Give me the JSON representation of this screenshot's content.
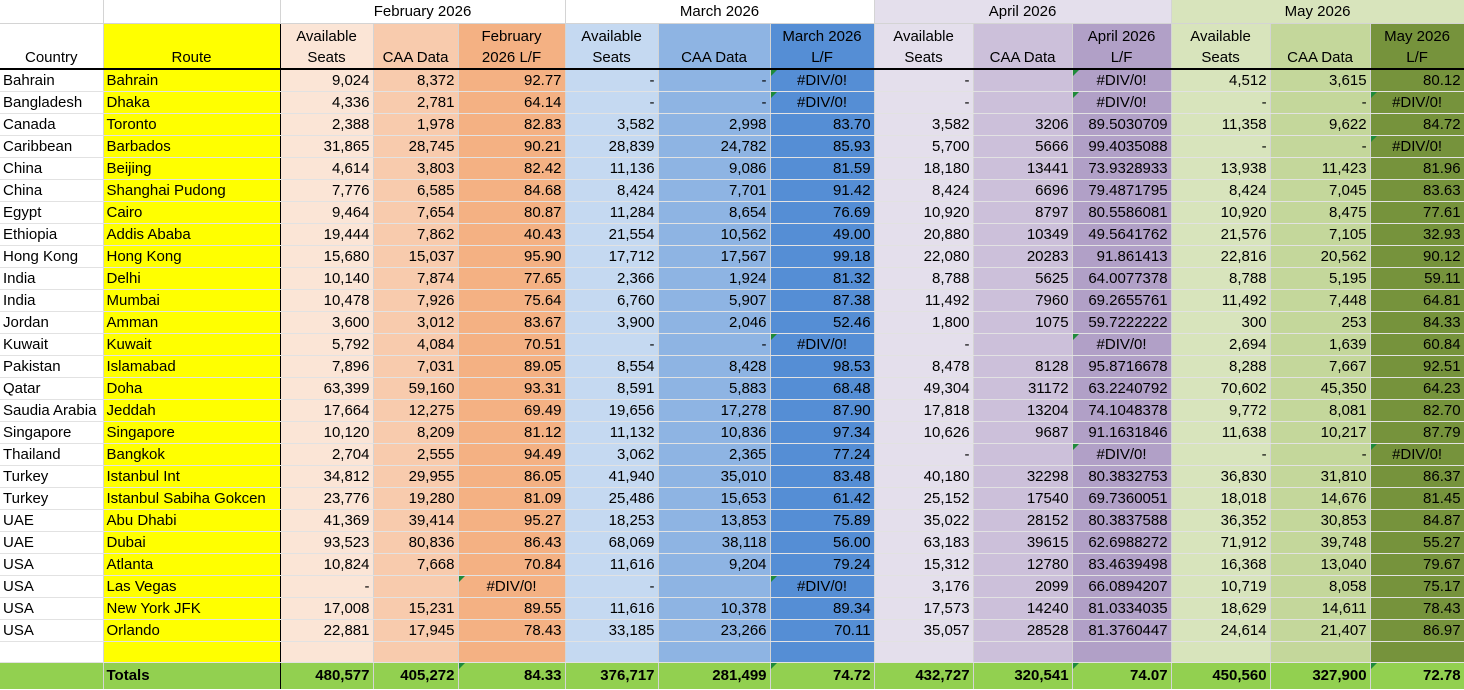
{
  "months": [
    "February 2026",
    "March 2026",
    "April 2026",
    "May 2026"
  ],
  "headers": {
    "country": "Country",
    "route": "Route",
    "feb": [
      "Available\nSeats",
      "CAA Data",
      "February\n2026 L/F"
    ],
    "mar": [
      "Available\nSeats",
      "CAA Data",
      "March 2026\nL/F"
    ],
    "apr": [
      "Available\nSeats",
      "CAA Data",
      "April  2026\nL/F"
    ],
    "may": [
      "Available\nSeats",
      "CAA Data",
      "May 2026\nL/F"
    ]
  },
  "rows": [
    [
      "Bahrain",
      "Bahrain",
      "9,024",
      "8,372",
      "92.77",
      "-",
      "-",
      "#DIV/0!",
      "-",
      "",
      "#DIV/0!",
      "4,512",
      "3,615",
      "80.12"
    ],
    [
      "Bangladesh",
      "Dhaka",
      "4,336",
      "2,781",
      "64.14",
      "-",
      "-",
      "#DIV/0!",
      "-",
      "",
      "#DIV/0!",
      "-",
      "-",
      "#DIV/0!"
    ],
    [
      "Canada",
      "Toronto",
      "2,388",
      "1,978",
      "82.83",
      "3,582",
      "2,998",
      "83.70",
      "3,582",
      "3206",
      "89.5030709",
      "11,358",
      "9,622",
      "84.72"
    ],
    [
      "Caribbean",
      "Barbados",
      "31,865",
      "28,745",
      "90.21",
      "28,839",
      "24,782",
      "85.93",
      "5,700",
      "5666",
      "99.4035088",
      "-",
      "-",
      "#DIV/0!"
    ],
    [
      "China",
      "Beijing",
      "4,614",
      "3,803",
      "82.42",
      "11,136",
      "9,086",
      "81.59",
      "18,180",
      "13441",
      "73.9328933",
      "13,938",
      "11,423",
      "81.96"
    ],
    [
      "China",
      "Shanghai Pudong",
      "7,776",
      "6,585",
      "84.68",
      "8,424",
      "7,701",
      "91.42",
      "8,424",
      "6696",
      "79.4871795",
      "8,424",
      "7,045",
      "83.63"
    ],
    [
      "Egypt",
      "Cairo",
      "9,464",
      "7,654",
      "80.87",
      "11,284",
      "8,654",
      "76.69",
      "10,920",
      "8797",
      "80.5586081",
      "10,920",
      "8,475",
      "77.61"
    ],
    [
      "Ethiopia",
      "Addis Ababa",
      "19,444",
      "7,862",
      "40.43",
      "21,554",
      "10,562",
      "49.00",
      "20,880",
      "10349",
      "49.5641762",
      "21,576",
      "7,105",
      "32.93"
    ],
    [
      "Hong Kong",
      "Hong Kong",
      "15,680",
      "15,037",
      "95.90",
      "17,712",
      "17,567",
      "99.18",
      "22,080",
      "20283",
      "91.861413",
      "22,816",
      "20,562",
      "90.12"
    ],
    [
      "India",
      "Delhi",
      "10,140",
      "7,874",
      "77.65",
      "2,366",
      "1,924",
      "81.32",
      "8,788",
      "5625",
      "64.0077378",
      "8,788",
      "5,195",
      "59.11"
    ],
    [
      "India",
      "Mumbai",
      "10,478",
      "7,926",
      "75.64",
      "6,760",
      "5,907",
      "87.38",
      "11,492",
      "7960",
      "69.2655761",
      "11,492",
      "7,448",
      "64.81"
    ],
    [
      "Jordan",
      "Amman",
      "3,600",
      "3,012",
      "83.67",
      "3,900",
      "2,046",
      "52.46",
      "1,800",
      "1075",
      "59.7222222",
      "300",
      "253",
      "84.33"
    ],
    [
      "Kuwait",
      "Kuwait",
      "5,792",
      "4,084",
      "70.51",
      "-",
      "-",
      "#DIV/0!",
      "-",
      "",
      "#DIV/0!",
      "2,694",
      "1,639",
      "60.84"
    ],
    [
      "Pakistan",
      "Islamabad",
      "7,896",
      "7,031",
      "89.05",
      "8,554",
      "8,428",
      "98.53",
      "8,478",
      "8128",
      "95.8716678",
      "8,288",
      "7,667",
      "92.51"
    ],
    [
      "Qatar",
      "Doha",
      "63,399",
      "59,160",
      "93.31",
      "8,591",
      "5,883",
      "68.48",
      "49,304",
      "31172",
      "63.2240792",
      "70,602",
      "45,350",
      "64.23"
    ],
    [
      "Saudia Arabia",
      "Jeddah",
      "17,664",
      "12,275",
      "69.49",
      "19,656",
      "17,278",
      "87.90",
      "17,818",
      "13204",
      "74.1048378",
      "9,772",
      "8,081",
      "82.70"
    ],
    [
      "Singapore",
      "Singapore",
      "10,120",
      "8,209",
      "81.12",
      "11,132",
      "10,836",
      "97.34",
      "10,626",
      "9687",
      "91.1631846",
      "11,638",
      "10,217",
      "87.79"
    ],
    [
      "Thailand",
      "Bangkok",
      "2,704",
      "2,555",
      "94.49",
      "3,062",
      "2,365",
      "77.24",
      "-",
      "",
      "#DIV/0!",
      "-",
      "-",
      "#DIV/0!"
    ],
    [
      "Turkey",
      "Istanbul Int",
      "34,812",
      "29,955",
      "86.05",
      "41,940",
      "35,010",
      "83.48",
      "40,180",
      "32298",
      "80.3832753",
      "36,830",
      "31,810",
      "86.37"
    ],
    [
      "Turkey",
      "Istanbul Sabiha Gokcen",
      "23,776",
      "19,280",
      "81.09",
      "25,486",
      "15,653",
      "61.42",
      "25,152",
      "17540",
      "69.7360051",
      "18,018",
      "14,676",
      "81.45"
    ],
    [
      "UAE",
      "Abu Dhabi",
      "41,369",
      "39,414",
      "95.27",
      "18,253",
      "13,853",
      "75.89",
      "35,022",
      "28152",
      "80.3837588",
      "36,352",
      "30,853",
      "84.87"
    ],
    [
      "UAE",
      "Dubai",
      "93,523",
      "80,836",
      "86.43",
      "68,069",
      "38,118",
      "56.00",
      "63,183",
      "39615",
      "62.6988272",
      "71,912",
      "39,748",
      "55.27"
    ],
    [
      "USA",
      "Atlanta",
      "10,824",
      "7,668",
      "70.84",
      "11,616",
      "9,204",
      "79.24",
      "15,312",
      "12780",
      "83.4639498",
      "16,368",
      "13,040",
      "79.67"
    ],
    [
      "USA",
      "Las Vegas",
      "-",
      "",
      "#DIV/0!",
      "-",
      "",
      "#DIV/0!",
      "3,176",
      "2099",
      "66.0894207",
      "10,719",
      "8,058",
      "75.17"
    ],
    [
      "USA",
      "New York JFK",
      "17,008",
      "15,231",
      "89.55",
      "11,616",
      "10,378",
      "89.34",
      "17,573",
      "14240",
      "81.0334035",
      "18,629",
      "14,611",
      "78.43"
    ],
    [
      "USA",
      "Orlando",
      "22,881",
      "17,945",
      "78.43",
      "33,185",
      "23,266",
      "70.11",
      "35,057",
      "28528",
      "81.3760447",
      "24,614",
      "21,407",
      "86.97"
    ]
  ],
  "totals": [
    "",
    "Totals",
    "480,577",
    "405,272",
    "84.33",
    "376,717",
    "281,499",
    "74.72",
    "432,727",
    "320,541",
    "74.07",
    "450,560",
    "327,900",
    "72.78"
  ],
  "colors": {
    "route": "#ffff00",
    "feb": [
      "#fbe5d6",
      "#f8cbad",
      "#f4b183"
    ],
    "mar": [
      "#c5d9f1",
      "#8eb4e3",
      "#558ed5"
    ],
    "apr": [
      "#e4dfec",
      "#ccc0da",
      "#b1a0c7"
    ],
    "may": [
      "#d8e4bc",
      "#c4d79b",
      "#76933c"
    ],
    "totals": "#92d050"
  }
}
